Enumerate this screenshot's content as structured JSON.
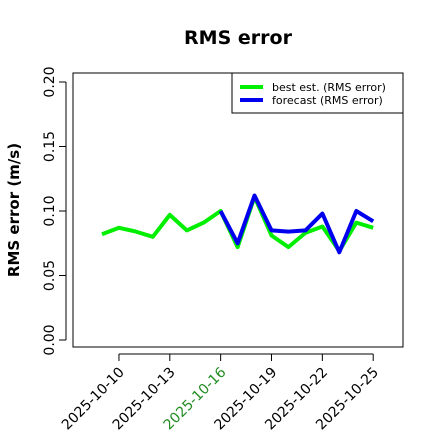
{
  "chart_data": {
    "type": "line",
    "title": "RMS error",
    "xlabel": "",
    "ylabel": "RMS error (m/s)",
    "x": [
      "2025-10-09",
      "2025-10-10",
      "2025-10-11",
      "2025-10-12",
      "2025-10-13",
      "2025-10-14",
      "2025-10-15",
      "2025-10-16",
      "2025-10-17",
      "2025-10-18",
      "2025-10-19",
      "2025-10-20",
      "2025-10-21",
      "2025-10-22",
      "2025-10-23",
      "2025-10-24",
      "2025-10-25"
    ],
    "x_tick_labels": [
      "2025-10-10",
      "2025-10-13",
      "2025-10-16",
      "2025-10-19",
      "2025-10-22",
      "2025-10-25"
    ],
    "highlighted_tick": "2025-10-16",
    "highlight_color": "#228B22",
    "y_ticks": [
      "0.00",
      "0.05",
      "0.10",
      "0.15",
      "0.20"
    ],
    "ylim": [
      0.0,
      0.21
    ],
    "xlim": [
      "2025-10-08",
      "2025-10-26"
    ],
    "grid": false,
    "legend_position": "top-right",
    "series": [
      {
        "name": "best est. (RMS error)",
        "color": "#00ee00",
        "values": [
          0.082,
          0.087,
          0.084,
          0.08,
          0.097,
          0.085,
          0.091,
          0.1,
          0.072,
          0.111,
          0.081,
          0.072,
          0.083,
          0.088,
          0.069,
          0.091,
          0.087
        ]
      },
      {
        "name": "forecast (RMS error)",
        "color": "#0000ee",
        "values": [
          null,
          null,
          null,
          null,
          null,
          null,
          null,
          0.1,
          0.075,
          0.112,
          0.085,
          0.084,
          0.085,
          0.098,
          0.068,
          0.1,
          0.092
        ]
      }
    ]
  }
}
